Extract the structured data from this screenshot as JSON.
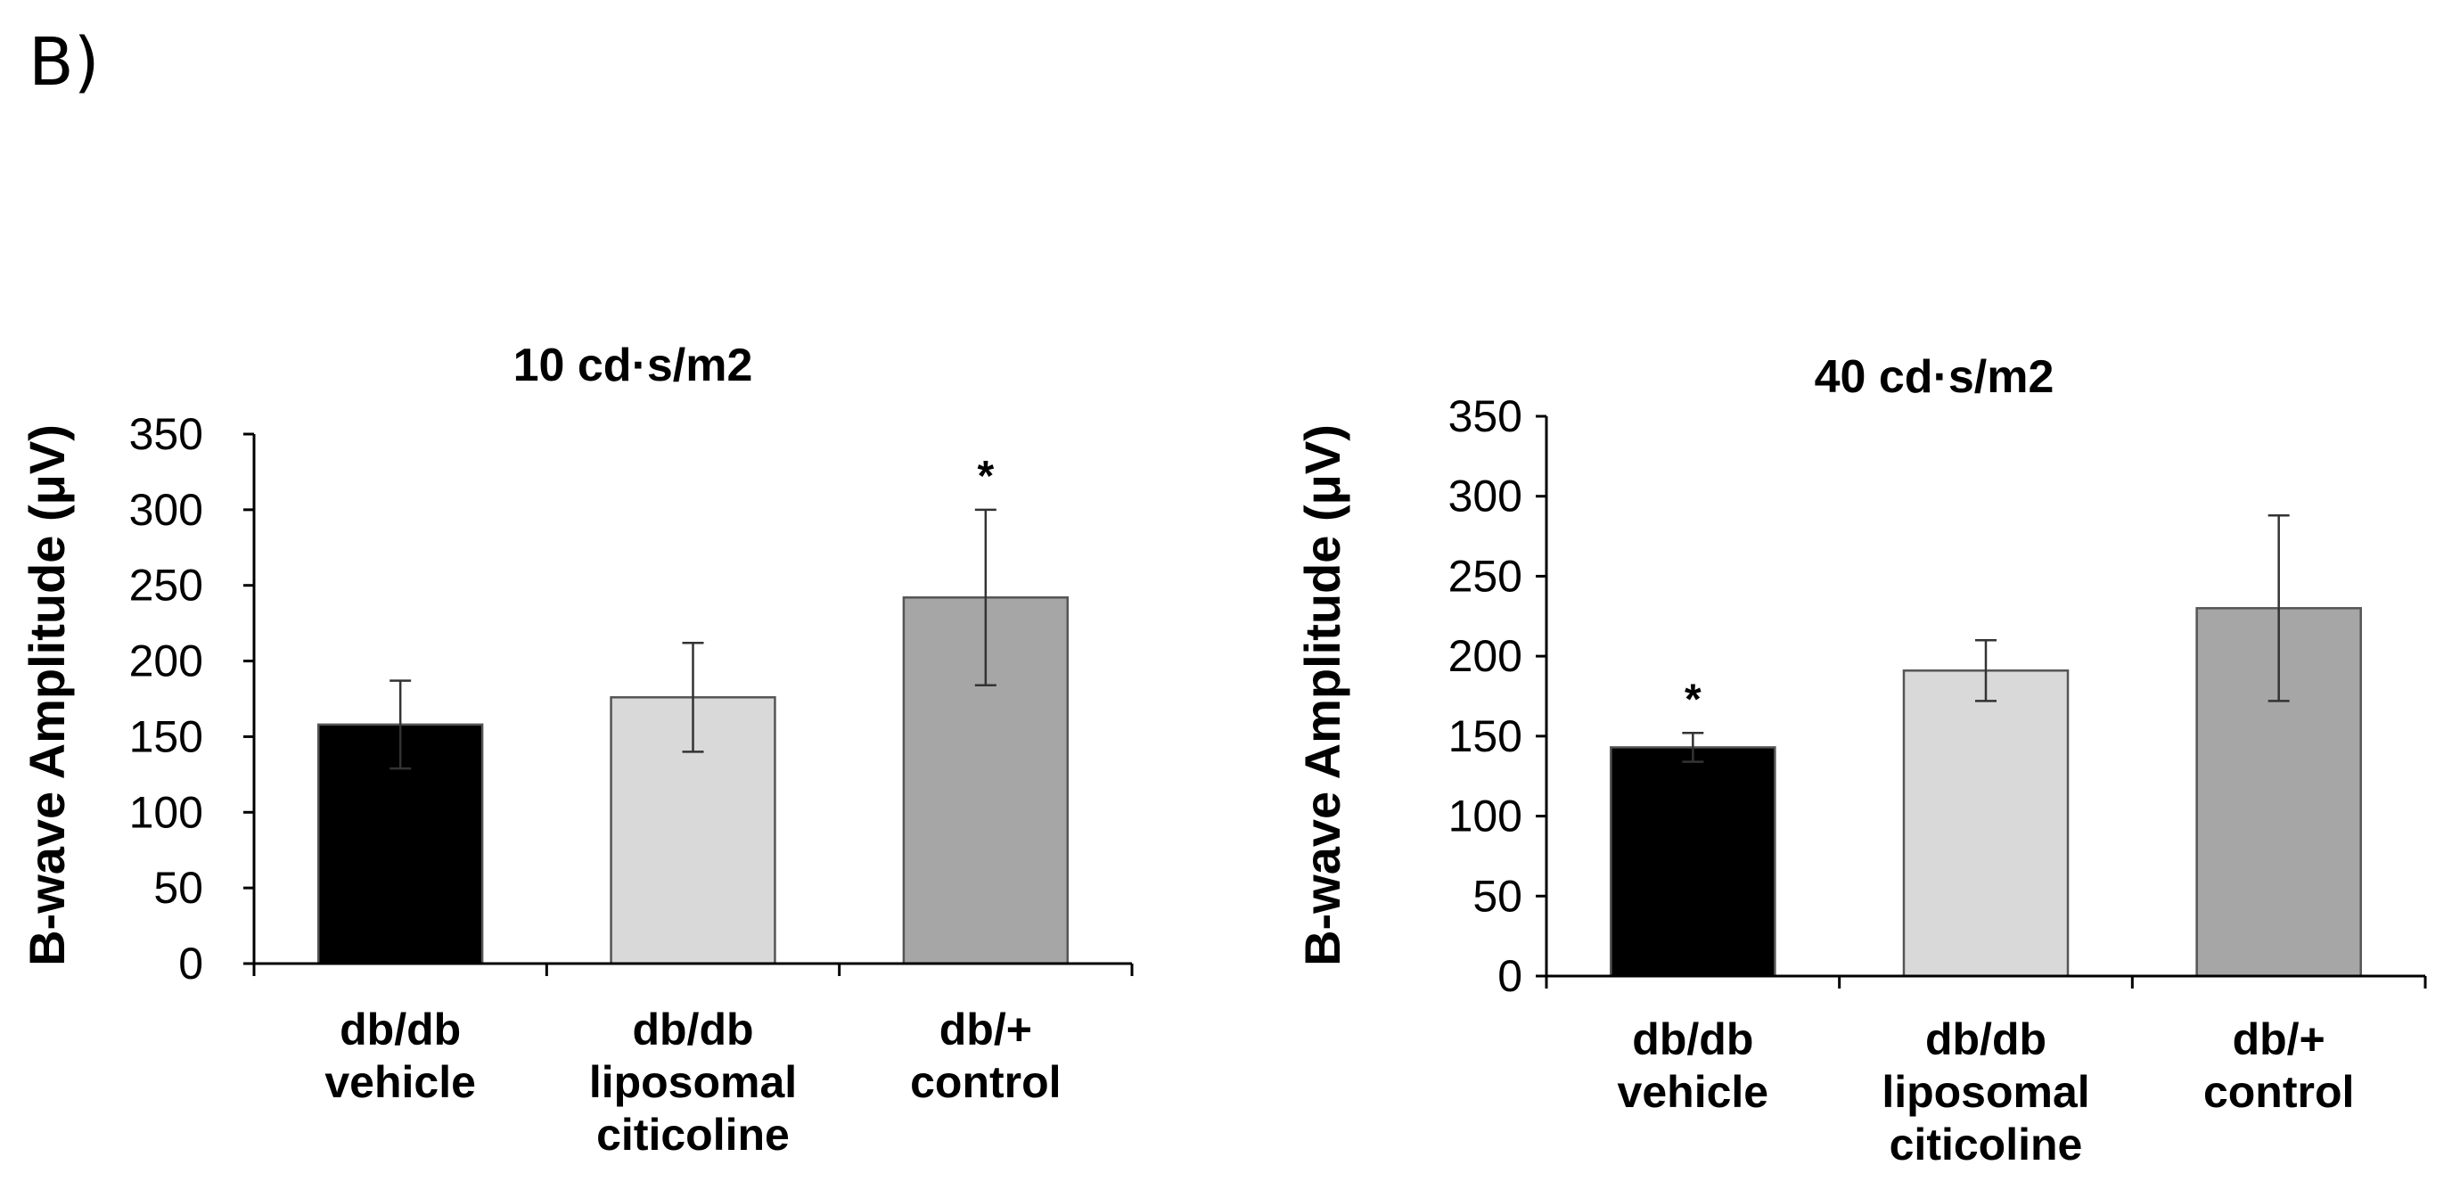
{
  "panel_label": "B)",
  "chart_data": [
    {
      "type": "bar",
      "title": "10 cd·s/m2",
      "ylabel": "B-wave Amplitude (μV)",
      "xlabel": "",
      "ylim": [
        0,
        350
      ],
      "yticks": [
        0,
        50,
        100,
        150,
        200,
        250,
        300,
        350
      ],
      "categories": [
        [
          "db/db",
          "vehicle"
        ],
        [
          "db/db",
          "liposomal",
          "citicoline"
        ],
        [
          "db/+",
          "control"
        ]
      ],
      "values": [
        158,
        176,
        242
      ],
      "errors": [
        29,
        36,
        58
      ],
      "bar_colors": [
        "#000000",
        "#d9d9d9",
        "#a6a6a6"
      ],
      "significance": [
        "",
        "",
        "*"
      ]
    },
    {
      "type": "bar",
      "title": "40 cd·s/m2",
      "ylabel": "B-wave Amplitude (μV)",
      "xlabel": "",
      "ylim": [
        0,
        350
      ],
      "yticks": [
        0,
        50,
        100,
        150,
        200,
        250,
        300,
        350
      ],
      "categories": [
        [
          "db/db",
          "vehicle"
        ],
        [
          "db/db",
          "liposomal",
          "citicoline"
        ],
        [
          "db/+",
          "control"
        ]
      ],
      "values": [
        143,
        191,
        230
      ],
      "errors": [
        9,
        19,
        58
      ],
      "bar_colors": [
        "#000000",
        "#d9d9d9",
        "#a6a6a6"
      ],
      "significance": [
        "*",
        "",
        ""
      ]
    }
  ]
}
